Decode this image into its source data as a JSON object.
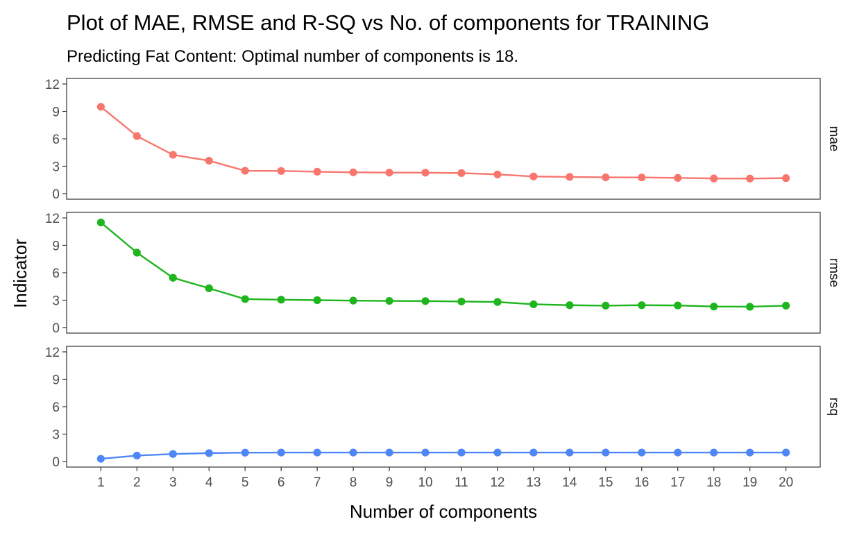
{
  "chart_data": {
    "type": "line",
    "title": "Plot of MAE, RMSE and R-SQ vs No. of components for TRAINING",
    "subtitle": "Predicting Fat Content: Optimal number of components is 18.",
    "xlabel": "Number of components",
    "ylabel": "Indicator",
    "x": [
      1,
      2,
      3,
      4,
      5,
      6,
      7,
      8,
      9,
      10,
      11,
      12,
      13,
      14,
      15,
      16,
      17,
      18,
      19,
      20
    ],
    "ylim": [
      0,
      12
    ],
    "yticks": [
      0,
      3,
      6,
      9,
      12
    ],
    "grid": false,
    "legend": "none",
    "facets": "rows",
    "series": [
      {
        "name": "mae",
        "color": "#F8766D",
        "values": [
          9.5,
          6.3,
          4.25,
          3.6,
          2.5,
          2.48,
          2.4,
          2.33,
          2.3,
          2.29,
          2.25,
          2.1,
          1.88,
          1.83,
          1.78,
          1.77,
          1.72,
          1.66,
          1.65,
          1.7
        ]
      },
      {
        "name": "rmse",
        "color": "#1EB51E",
        "values": [
          11.5,
          8.2,
          5.45,
          4.3,
          3.12,
          3.05,
          3.0,
          2.95,
          2.92,
          2.9,
          2.85,
          2.8,
          2.55,
          2.45,
          2.4,
          2.45,
          2.42,
          2.3,
          2.28,
          2.4
        ]
      },
      {
        "name": "rsq",
        "color": "#4F86F7",
        "values": [
          0.3,
          0.65,
          0.82,
          0.92,
          0.97,
          0.98,
          0.98,
          0.98,
          0.98,
          0.98,
          0.98,
          0.98,
          0.98,
          0.98,
          0.98,
          0.98,
          0.98,
          0.98,
          0.98,
          0.98
        ]
      }
    ]
  }
}
